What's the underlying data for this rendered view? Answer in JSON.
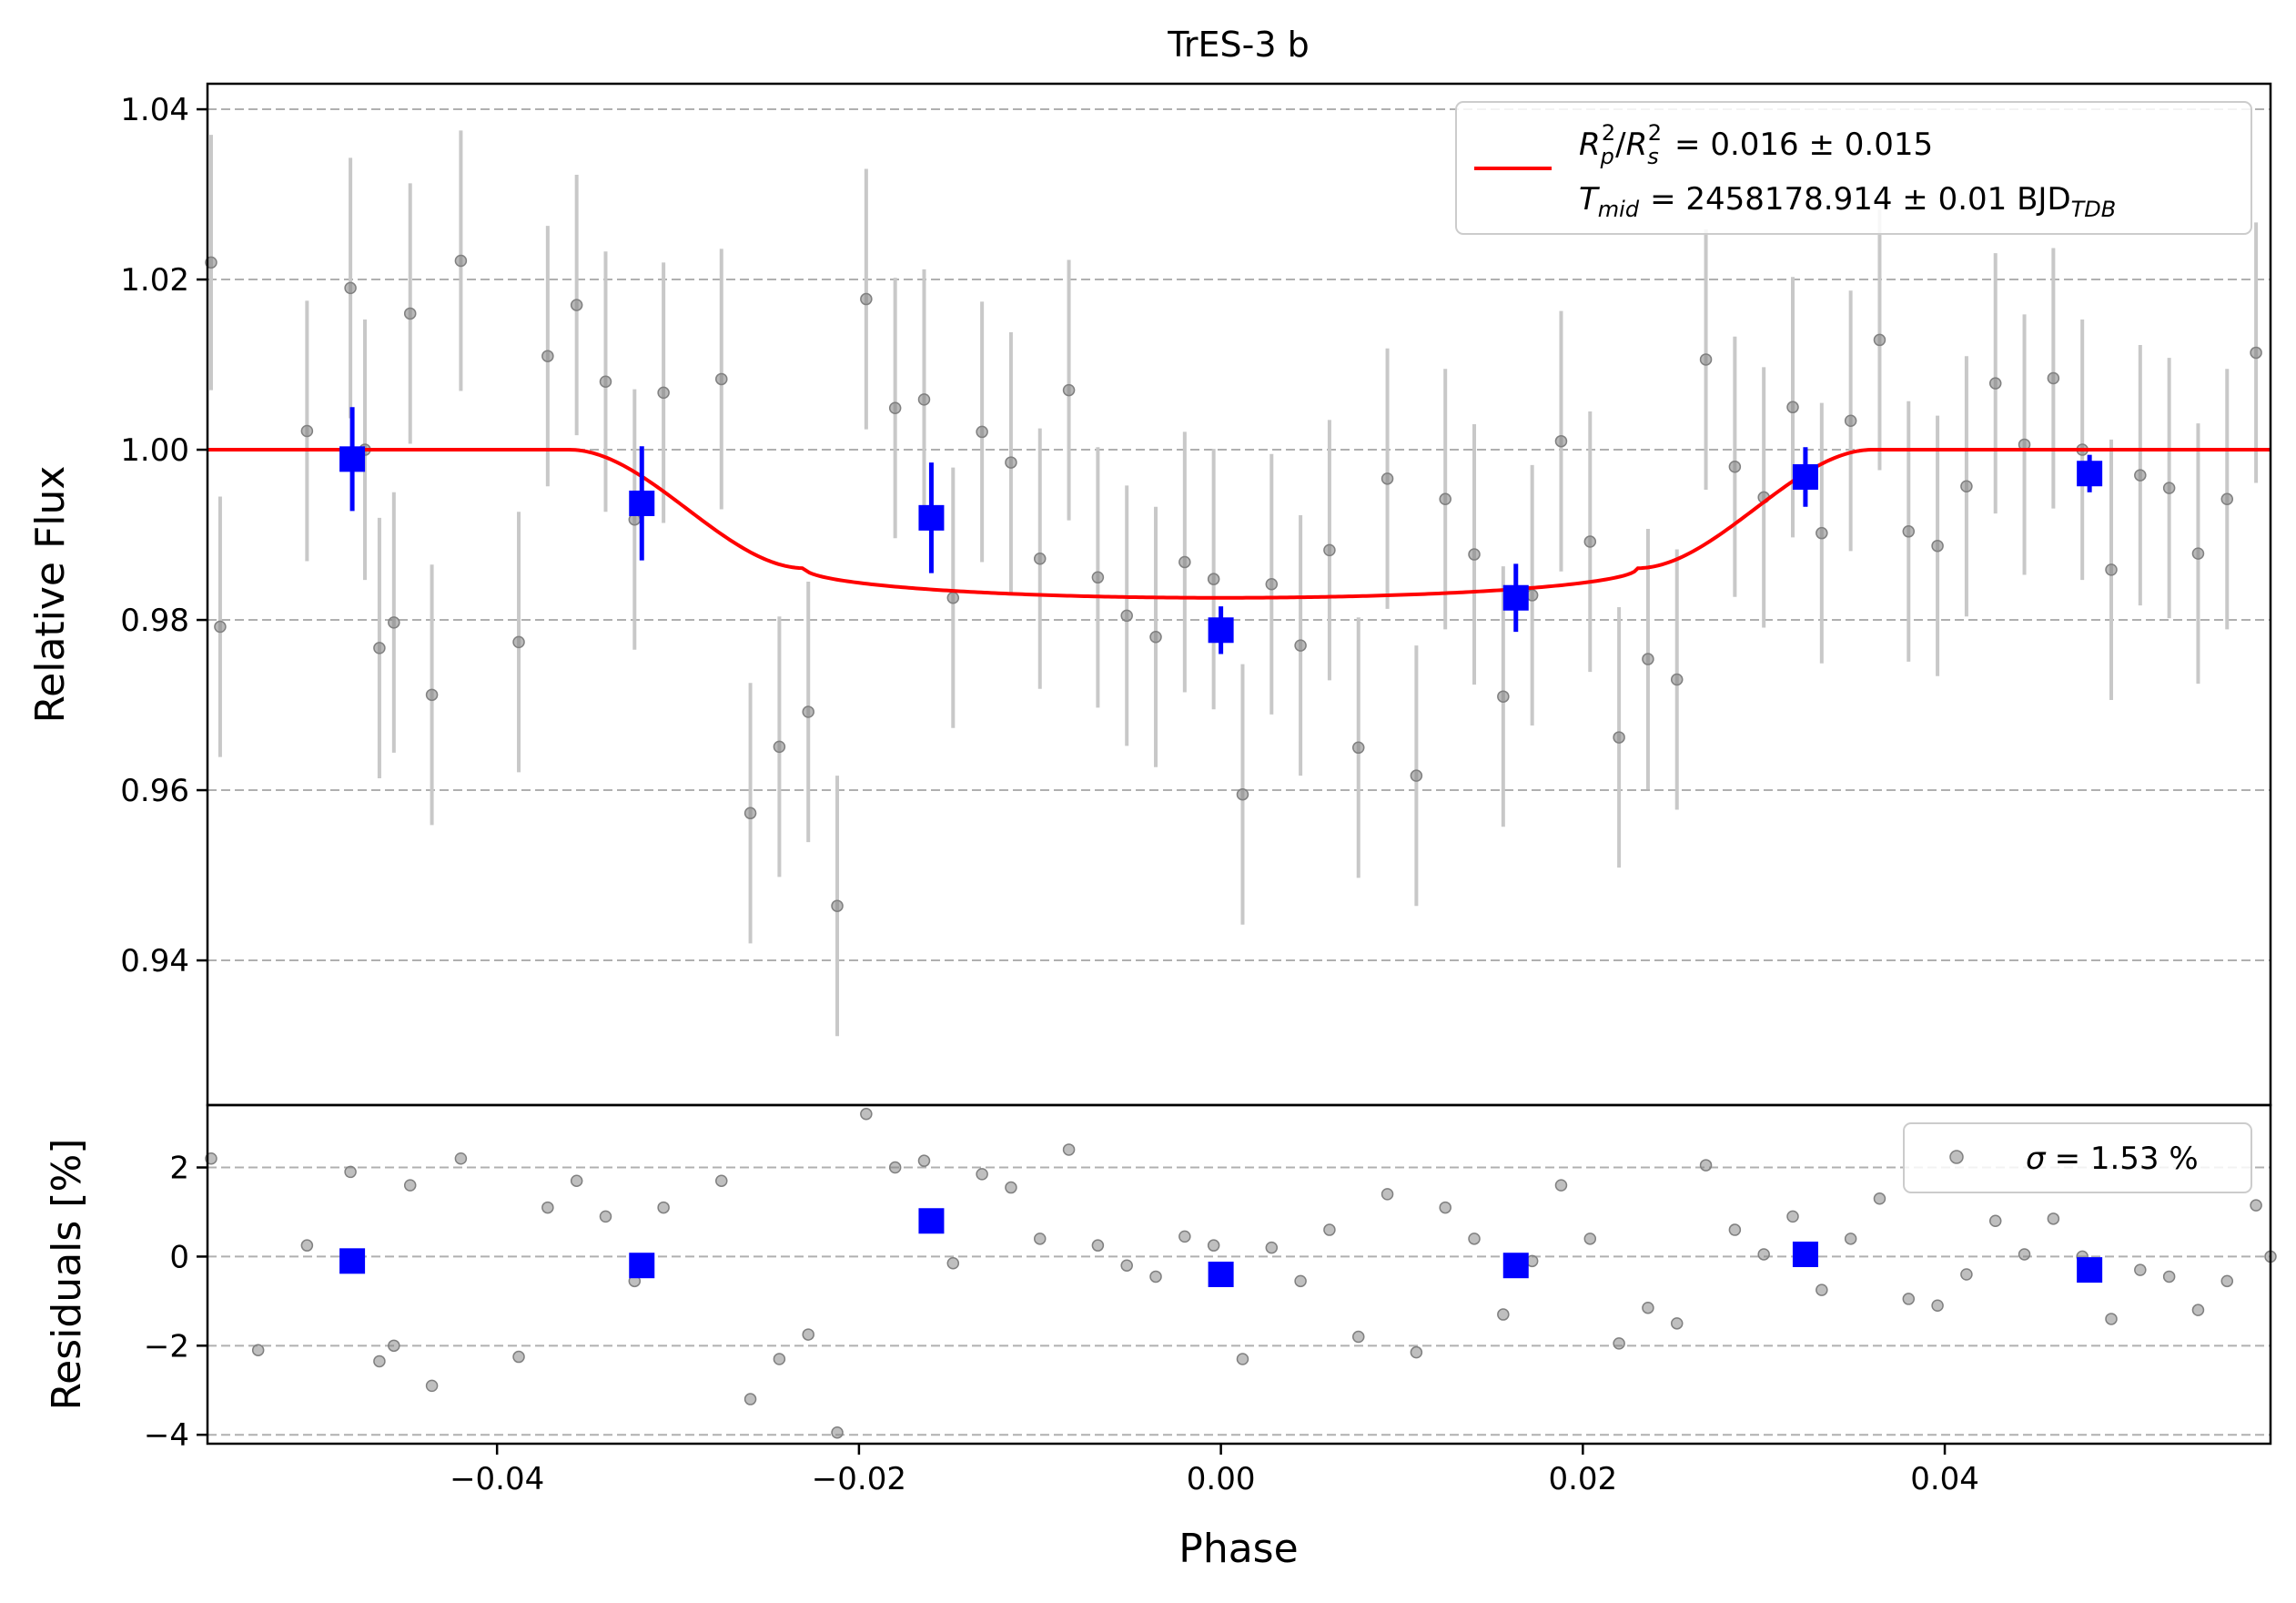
{
  "chart_data": [
    {
      "type": "scatter",
      "panel": "top",
      "title": "TrES-3 b",
      "ylabel": "Relative Flux",
      "xlabel": "",
      "xlim": [
        -0.056,
        0.058
      ],
      "ylim": [
        0.923,
        1.043
      ],
      "grid": "horizontal dashed",
      "legend_placement": "top-right",
      "yticks": [
        0.94,
        0.96,
        0.98,
        1.0,
        1.02,
        1.04
      ],
      "ytick_labels": [
        "0.94",
        "0.96",
        "0.98",
        "1.00",
        "1.02",
        "1.04"
      ],
      "legend": {
        "line1_main": "R",
        "line1_expr": "= 0.016 ± 0.015",
        "line2_main": "T",
        "line2_sub": "mid",
        "line2_expr": "= 2458178.914 ± 0.01 BJD",
        "line2_unit_sub": "TDB"
      },
      "colors": {
        "raw": "#808080",
        "raw_err": "#c8c8c8",
        "binned": "#0000ff",
        "model": "#ff0000"
      },
      "raw_points": [
        {
          "x": -0.0558,
          "y": 1.022,
          "err": 0.015
        },
        {
          "x": -0.0553,
          "y": 0.9792,
          "err": 0.0153
        },
        {
          "x": -0.0505,
          "y": 1.0022,
          "err": 0.0153
        },
        {
          "x": -0.0481,
          "y": 1.019,
          "err": 0.0153
        },
        {
          "x": -0.0473,
          "y": 1.0,
          "err": 0.0153
        },
        {
          "x": -0.0465,
          "y": 0.9767,
          "err": 0.0153
        },
        {
          "x": -0.0457,
          "y": 0.9797,
          "err": 0.0153
        },
        {
          "x": -0.0448,
          "y": 1.016,
          "err": 0.0153
        },
        {
          "x": -0.0436,
          "y": 0.9712,
          "err": 0.0153
        },
        {
          "x": -0.042,
          "y": 1.0222,
          "err": 0.0153
        },
        {
          "x": -0.0388,
          "y": 0.9774,
          "err": 0.0153
        },
        {
          "x": -0.0372,
          "y": 1.011,
          "err": 0.0153
        },
        {
          "x": -0.0356,
          "y": 1.017,
          "err": 0.0153
        },
        {
          "x": -0.034,
          "y": 1.008,
          "err": 0.0153
        },
        {
          "x": -0.0324,
          "y": 0.9918,
          "err": 0.0153
        },
        {
          "x": -0.0308,
          "y": 1.0067,
          "err": 0.0153
        },
        {
          "x": -0.0276,
          "y": 1.0083,
          "err": 0.0153
        },
        {
          "x": -0.026,
          "y": 0.9573,
          "err": 0.0153
        },
        {
          "x": -0.0244,
          "y": 0.9651,
          "err": 0.0153
        },
        {
          "x": -0.0228,
          "y": 0.9692,
          "err": 0.0153
        },
        {
          "x": -0.0212,
          "y": 0.9464,
          "err": 0.0153
        },
        {
          "x": -0.0196,
          "y": 1.0177,
          "err": 0.0153
        },
        {
          "x": -0.018,
          "y": 1.0049,
          "err": 0.0153
        },
        {
          "x": -0.0164,
          "y": 1.0059,
          "err": 0.0153
        },
        {
          "x": -0.0148,
          "y": 0.9826,
          "err": 0.0153
        },
        {
          "x": -0.0132,
          "y": 1.0021,
          "err": 0.0153
        },
        {
          "x": -0.0116,
          "y": 0.9985,
          "err": 0.0153
        },
        {
          "x": -0.01,
          "y": 0.9872,
          "err": 0.0153
        },
        {
          "x": -0.0084,
          "y": 1.007,
          "err": 0.0153
        },
        {
          "x": -0.0068,
          "y": 0.985,
          "err": 0.0153
        },
        {
          "x": -0.0052,
          "y": 0.9805,
          "err": 0.0153
        },
        {
          "x": -0.0036,
          "y": 0.978,
          "err": 0.0153
        },
        {
          "x": -0.002,
          "y": 0.9868,
          "err": 0.0153
        },
        {
          "x": -0.0004,
          "y": 0.9848,
          "err": 0.0153
        },
        {
          "x": 0.0012,
          "y": 0.9595,
          "err": 0.0153
        },
        {
          "x": 0.0028,
          "y": 0.9842,
          "err": 0.0153
        },
        {
          "x": 0.0044,
          "y": 0.977,
          "err": 0.0153
        },
        {
          "x": 0.006,
          "y": 0.9882,
          "err": 0.0153
        },
        {
          "x": 0.0076,
          "y": 0.965,
          "err": 0.0153
        },
        {
          "x": 0.0092,
          "y": 0.9966,
          "err": 0.0153
        },
        {
          "x": 0.0108,
          "y": 0.9617,
          "err": 0.0153
        },
        {
          "x": 0.0124,
          "y": 0.9942,
          "err": 0.0153
        },
        {
          "x": 0.014,
          "y": 0.9877,
          "err": 0.0153
        },
        {
          "x": 0.0156,
          "y": 0.971,
          "err": 0.0153
        },
        {
          "x": 0.0172,
          "y": 0.9829,
          "err": 0.0153
        },
        {
          "x": 0.0188,
          "y": 1.001,
          "err": 0.0153
        },
        {
          "x": 0.0204,
          "y": 0.9892,
          "err": 0.0153
        },
        {
          "x": 0.022,
          "y": 0.9662,
          "err": 0.0153
        },
        {
          "x": 0.0236,
          "y": 0.9754,
          "err": 0.0153
        },
        {
          "x": 0.0252,
          "y": 0.973,
          "err": 0.0153
        },
        {
          "x": 0.0268,
          "y": 1.0106,
          "err": 0.0153
        },
        {
          "x": 0.0284,
          "y": 0.998,
          "err": 0.0153
        },
        {
          "x": 0.03,
          "y": 0.9944,
          "err": 0.0153
        },
        {
          "x": 0.0316,
          "y": 1.005,
          "err": 0.0153
        },
        {
          "x": 0.0332,
          "y": 0.9902,
          "err": 0.0153
        },
        {
          "x": 0.0348,
          "y": 1.0034,
          "err": 0.0153
        },
        {
          "x": 0.0364,
          "y": 1.0129,
          "err": 0.0153
        },
        {
          "x": 0.038,
          "y": 0.9904,
          "err": 0.0153
        },
        {
          "x": 0.0396,
          "y": 0.9887,
          "err": 0.0153
        },
        {
          "x": 0.0412,
          "y": 0.9957,
          "err": 0.0153
        },
        {
          "x": 0.0428,
          "y": 1.0078,
          "err": 0.0153
        },
        {
          "x": 0.0444,
          "y": 1.0006,
          "err": 0.0153
        },
        {
          "x": 0.046,
          "y": 1.0084,
          "err": 0.0153
        },
        {
          "x": 0.0476,
          "y": 1.0,
          "err": 0.0153
        },
        {
          "x": 0.0492,
          "y": 0.9859,
          "err": 0.0153
        },
        {
          "x": 0.0508,
          "y": 0.997,
          "err": 0.0153
        },
        {
          "x": 0.0524,
          "y": 0.9955,
          "err": 0.0153
        },
        {
          "x": 0.054,
          "y": 0.9878,
          "err": 0.0153
        },
        {
          "x": 0.0556,
          "y": 0.9942,
          "err": 0.0153
        },
        {
          "x": 0.0572,
          "y": 1.0114,
          "err": 0.0153
        }
      ],
      "binned_points": [
        {
          "x": -0.048,
          "y": 0.9989,
          "err": 0.0061
        },
        {
          "x": -0.032,
          "y": 0.9937,
          "err": 0.0067
        },
        {
          "x": -0.016,
          "y": 0.992,
          "err": 0.0065
        },
        {
          "x": 0.0,
          "y": 0.9788,
          "err": 0.0028
        },
        {
          "x": 0.0163,
          "y": 0.9826,
          "err": 0.004
        },
        {
          "x": 0.0323,
          "y": 0.9968,
          "err": 0.0035
        },
        {
          "x": 0.048,
          "y": 0.9972,
          "err": 0.0022
        }
      ],
      "model": {
        "depth": 0.0174,
        "t14": 0.072,
        "t12": 0.013
      }
    },
    {
      "type": "scatter",
      "panel": "bottom",
      "xlabel": "Phase",
      "ylabel": "Residuals [%]",
      "xlim": [
        -0.056,
        0.058
      ],
      "ylim": [
        -4.2,
        3.4
      ],
      "grid": "horizontal dashed",
      "legend_placement": "top-right",
      "xticks": [
        -0.04,
        -0.02,
        0.0,
        0.02,
        0.04
      ],
      "xtick_labels": [
        "−0.04",
        "−0.02",
        "0.00",
        "0.02",
        "0.04"
      ],
      "yticks": [
        -4,
        -2,
        0,
        2
      ],
      "ytick_labels": [
        "−4",
        "−2",
        "0",
        "2"
      ],
      "legend": {
        "sigma_symbol": "σ",
        "sigma_text": "= 1.53 %"
      },
      "raw_points": [
        {
          "x": -0.0558,
          "y": 2.2
        },
        {
          "x": -0.0532,
          "y": -2.1
        },
        {
          "x": -0.0505,
          "y": 0.25
        },
        {
          "x": -0.0481,
          "y": 1.9
        },
        {
          "x": -0.0465,
          "y": -2.35
        },
        {
          "x": -0.0457,
          "y": -2.0
        },
        {
          "x": -0.0448,
          "y": 1.6
        },
        {
          "x": -0.0436,
          "y": -2.9
        },
        {
          "x": -0.042,
          "y": 2.2
        },
        {
          "x": -0.0388,
          "y": -2.25
        },
        {
          "x": -0.0372,
          "y": 1.1
        },
        {
          "x": -0.0356,
          "y": 1.7
        },
        {
          "x": -0.034,
          "y": 0.9
        },
        {
          "x": -0.0324,
          "y": -0.55
        },
        {
          "x": -0.0308,
          "y": 1.1
        },
        {
          "x": -0.0276,
          "y": 1.7
        },
        {
          "x": -0.026,
          "y": -3.2
        },
        {
          "x": -0.0244,
          "y": -2.3
        },
        {
          "x": -0.0228,
          "y": -1.75
        },
        {
          "x": -0.0212,
          "y": -3.95
        },
        {
          "x": -0.0196,
          "y": 3.2
        },
        {
          "x": -0.018,
          "y": 2.0
        },
        {
          "x": -0.0164,
          "y": 2.15
        },
        {
          "x": -0.0148,
          "y": -0.15
        },
        {
          "x": -0.0132,
          "y": 1.85
        },
        {
          "x": -0.0116,
          "y": 1.55
        },
        {
          "x": -0.01,
          "y": 0.4
        },
        {
          "x": -0.0084,
          "y": 2.4
        },
        {
          "x": -0.0068,
          "y": 0.25
        },
        {
          "x": -0.0052,
          "y": -0.2
        },
        {
          "x": -0.0036,
          "y": -0.45
        },
        {
          "x": -0.002,
          "y": 0.45
        },
        {
          "x": -0.0004,
          "y": 0.25
        },
        {
          "x": 0.0012,
          "y": -2.3
        },
        {
          "x": 0.0028,
          "y": 0.2
        },
        {
          "x": 0.0044,
          "y": -0.55
        },
        {
          "x": 0.006,
          "y": 0.6
        },
        {
          "x": 0.0076,
          "y": -1.8
        },
        {
          "x": 0.0092,
          "y": 1.4
        },
        {
          "x": 0.0108,
          "y": -2.15
        },
        {
          "x": 0.0124,
          "y": 1.1
        },
        {
          "x": 0.014,
          "y": 0.4
        },
        {
          "x": 0.0156,
          "y": -1.3
        },
        {
          "x": 0.0172,
          "y": -0.1
        },
        {
          "x": 0.0188,
          "y": 1.6
        },
        {
          "x": 0.0204,
          "y": 0.4
        },
        {
          "x": 0.022,
          "y": -1.95
        },
        {
          "x": 0.0236,
          "y": -1.15
        },
        {
          "x": 0.0252,
          "y": -1.5
        },
        {
          "x": 0.0268,
          "y": 2.05
        },
        {
          "x": 0.0284,
          "y": 0.6
        },
        {
          "x": 0.03,
          "y": 0.05
        },
        {
          "x": 0.0316,
          "y": 0.9
        },
        {
          "x": 0.0332,
          "y": -0.75
        },
        {
          "x": 0.0348,
          "y": 0.4
        },
        {
          "x": 0.0364,
          "y": 1.3
        },
        {
          "x": 0.038,
          "y": -0.95
        },
        {
          "x": 0.0396,
          "y": -1.1
        },
        {
          "x": 0.0412,
          "y": -0.4
        },
        {
          "x": 0.0428,
          "y": 0.8
        },
        {
          "x": 0.0444,
          "y": 0.05
        },
        {
          "x": 0.046,
          "y": 0.85
        },
        {
          "x": 0.0476,
          "y": 0.0
        },
        {
          "x": 0.0492,
          "y": -1.4
        },
        {
          "x": 0.0508,
          "y": -0.3
        },
        {
          "x": 0.0524,
          "y": -0.45
        },
        {
          "x": 0.054,
          "y": -1.2
        },
        {
          "x": 0.0556,
          "y": -0.55
        },
        {
          "x": 0.0572,
          "y": 1.15
        },
        {
          "x": 0.058,
          "y": 0.0
        }
      ],
      "binned_points": [
        {
          "x": -0.048,
          "y": -0.1
        },
        {
          "x": -0.032,
          "y": -0.2
        },
        {
          "x": -0.016,
          "y": 0.8
        },
        {
          "x": 0.0,
          "y": -0.4
        },
        {
          "x": 0.0163,
          "y": -0.2
        },
        {
          "x": 0.0323,
          "y": 0.05
        },
        {
          "x": 0.048,
          "y": -0.3
        }
      ]
    }
  ]
}
